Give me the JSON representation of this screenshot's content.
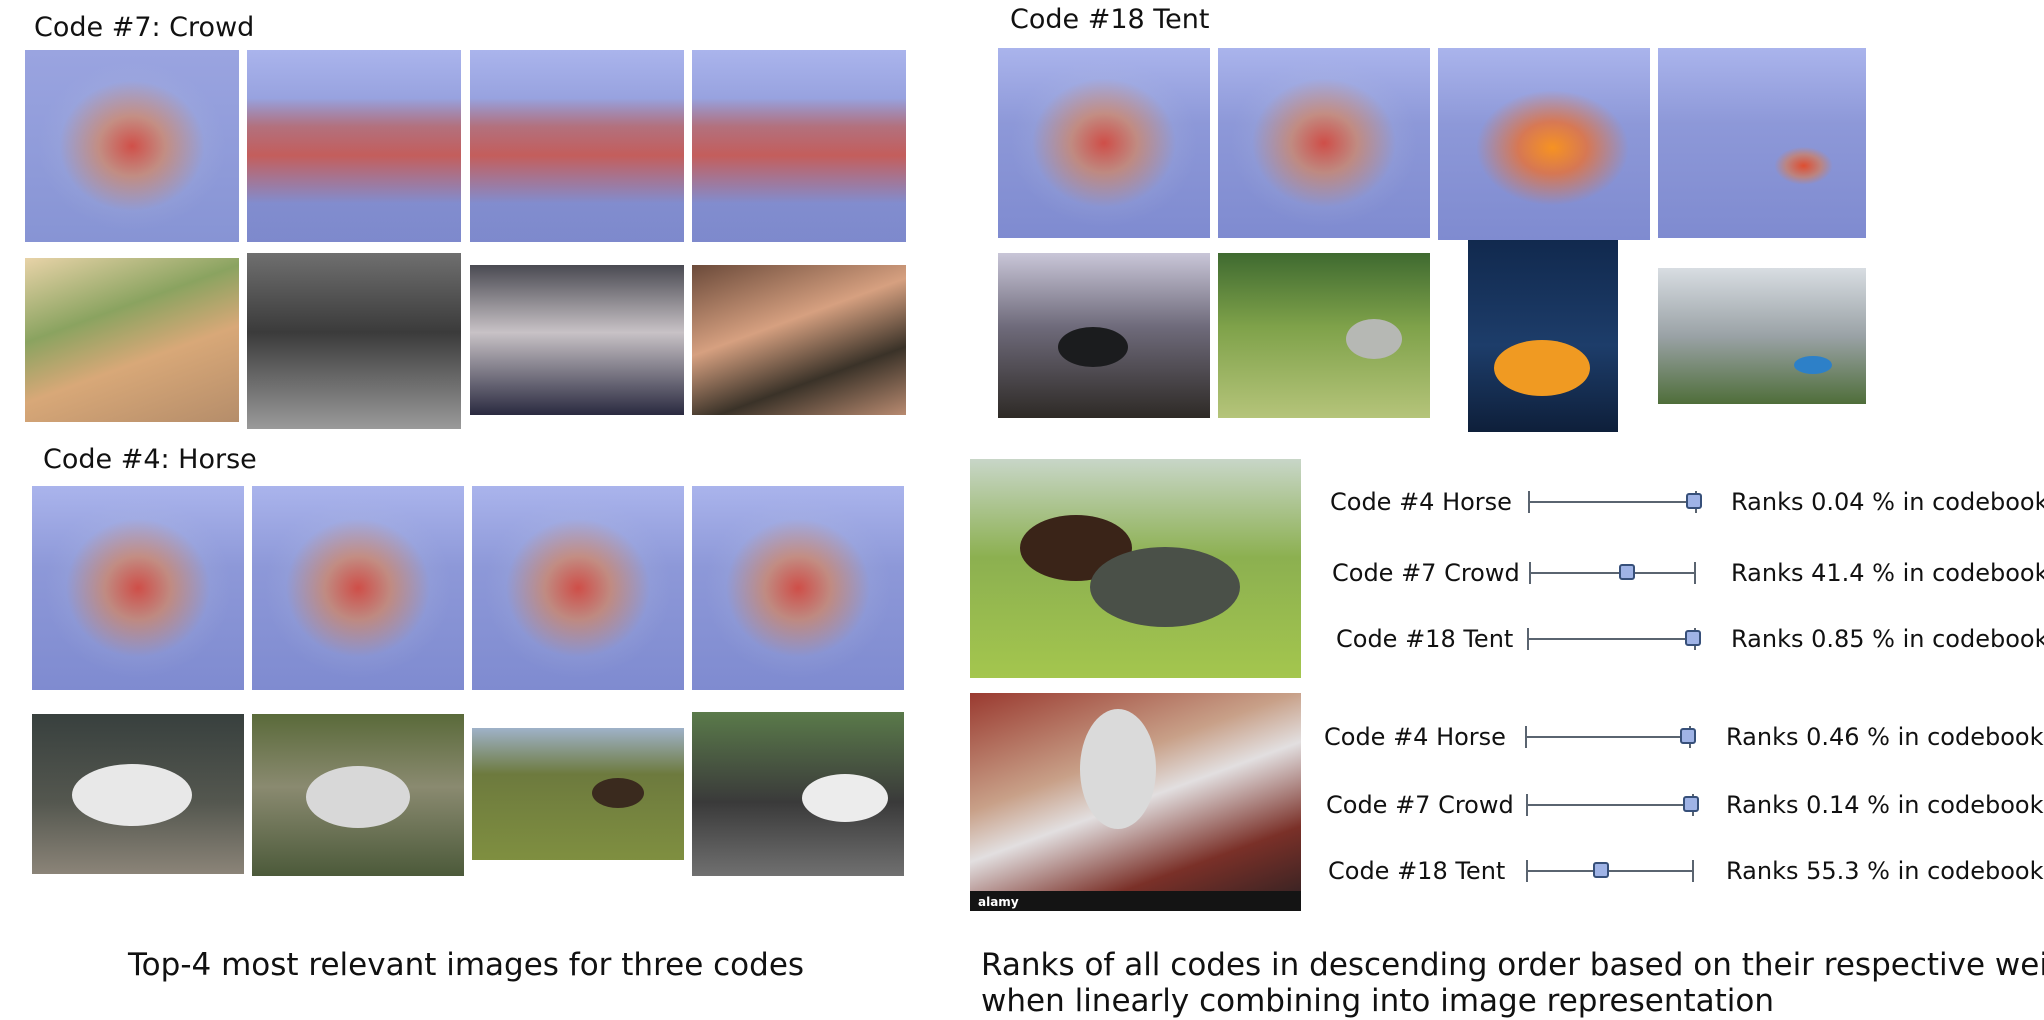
{
  "crowd_panel": {
    "title": "Code #7: Crowd"
  },
  "tent_panel": {
    "title": "Code #18 Tent"
  },
  "horse_panel": {
    "title": "Code #4: Horse"
  },
  "image_watermark": "alamy",
  "rank_panel": {
    "rows": [
      {
        "code": "Code #4 Horse",
        "rank": 0.04,
        "text": "Ranks 0.04 % in codebook"
      },
      {
        "code": "Code #7 Crowd",
        "rank": 41.4,
        "text": "Ranks 41.4 % in codebook"
      },
      {
        "code": "Code #18 Tent",
        "rank": 0.85,
        "text": "Ranks 0.85 % in codebook"
      },
      {
        "code": "Code #4 Horse",
        "rank": 0.46,
        "text": "Ranks 0.46 % in codebook"
      },
      {
        "code": "Code #7 Crowd",
        "rank": 0.14,
        "text": "Ranks 0.14 % in codebook"
      },
      {
        "code": "Code #18 Tent",
        "rank": 55.3,
        "text": "Ranks 55.3 % in codebook"
      }
    ]
  },
  "captions": {
    "left": "Top-4 most relevant images for three codes",
    "right_line1": "Ranks of all codes in descending order based on their respective weights",
    "right_line2": "when linearly combining into image representation"
  }
}
